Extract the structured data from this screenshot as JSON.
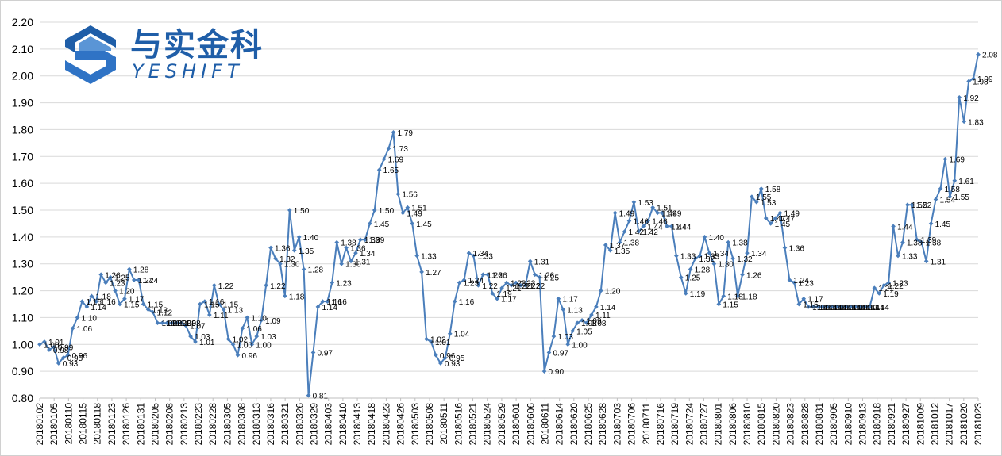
{
  "brand": {
    "name_cn": "与实金科",
    "name_en": "YESHIFT",
    "color": "#1f5ea8"
  },
  "chart_data": {
    "type": "line",
    "title": "",
    "xlabel": "",
    "ylabel": "",
    "ylim": [
      0.8,
      2.2
    ],
    "yticks": [
      "0.80",
      "0.90",
      "1.00",
      "1.10",
      "1.20",
      "1.30",
      "1.40",
      "1.50",
      "1.60",
      "1.70",
      "1.80",
      "1.90",
      "2.00",
      "2.10",
      "2.20"
    ],
    "x_tick_labels": [
      "20180102",
      "20180105",
      "20180110",
      "20180115",
      "20180118",
      "20180123",
      "20180126",
      "20180131",
      "20180205",
      "20180208",
      "20180213",
      "20180223",
      "20180228",
      "20180305",
      "20180308",
      "20180313",
      "20180316",
      "20180321",
      "20180326",
      "20180329",
      "20180403",
      "20180410",
      "20180413",
      "20180418",
      "20180423",
      "20180426",
      "20180503",
      "20180508",
      "20180511",
      "20180516",
      "20180521",
      "20180524",
      "20180529",
      "20180601",
      "20180606",
      "20180611",
      "20180614",
      "20180620",
      "20180625",
      "20180628",
      "20180703",
      "20180706",
      "20180711",
      "20180716",
      "20180719",
      "20180724",
      "20180727",
      "20180801",
      "20180806",
      "20180810",
      "20180815",
      "20180820",
      "20180823",
      "20180828",
      "20180831",
      "20180905",
      "20180910",
      "20180913",
      "20180918",
      "20180921",
      "20180927",
      "20181009",
      "20181012",
      "20181017",
      "20181020",
      "20181023"
    ],
    "grid": "horizontal",
    "line_color": "#4a7ebb",
    "label_color": "#000000",
    "series": [
      {
        "values": [
          1.0,
          1.01,
          0.98,
          0.99,
          0.93,
          0.95,
          0.96,
          1.06,
          1.1,
          1.16,
          1.14,
          1.18,
          1.16,
          1.26,
          1.23,
          1.25,
          1.2,
          1.15,
          1.17,
          1.28,
          1.24,
          1.24,
          1.15,
          1.13,
          1.12,
          1.08,
          1.08,
          1.08,
          1.08,
          1.08,
          1.08,
          1.07,
          1.03,
          1.01,
          1.15,
          1.16,
          1.11,
          1.22,
          1.15,
          1.13,
          1.02,
          1.0,
          0.96,
          1.06,
          1.1,
          1.0,
          1.03,
          1.09,
          1.22,
          1.36,
          1.32,
          1.3,
          1.18,
          1.5,
          1.35,
          1.4,
          1.28,
          0.81,
          0.97,
          1.14,
          1.16,
          1.16,
          1.23,
          1.38,
          1.3,
          1.36,
          1.31,
          1.34,
          1.39,
          1.39,
          1.45,
          1.5,
          1.65,
          1.69,
          1.73,
          1.79,
          1.56,
          1.49,
          1.51,
          1.45,
          1.33,
          1.27,
          1.02,
          1.01,
          0.96,
          0.93,
          0.95,
          1.04,
          1.16,
          1.23,
          1.24,
          1.34,
          1.33,
          1.22,
          1.26,
          1.26,
          1.19,
          1.17,
          1.21,
          1.23,
          1.22,
          1.23,
          1.22,
          1.22,
          1.31,
          1.26,
          1.25,
          0.9,
          0.97,
          1.03,
          1.17,
          1.13,
          1.0,
          1.05,
          1.08,
          1.09,
          1.08,
          1.11,
          1.14,
          1.2,
          1.37,
          1.35,
          1.49,
          1.38,
          1.42,
          1.46,
          1.53,
          1.42,
          1.44,
          1.46,
          1.51,
          1.49,
          1.49,
          1.44,
          1.44,
          1.33,
          1.25,
          1.19,
          1.28,
          1.32,
          1.33,
          1.4,
          1.34,
          1.3,
          1.15,
          1.18,
          1.38,
          1.32,
          1.18,
          1.26,
          1.34,
          1.55,
          1.53,
          1.58,
          1.47,
          1.45,
          1.47,
          1.49,
          1.36,
          1.24,
          1.23,
          1.15,
          1.17,
          1.14,
          1.14,
          1.14,
          1.14,
          1.14,
          1.14,
          1.14,
          1.14,
          1.14,
          1.14,
          1.14,
          1.14,
          1.14,
          1.14,
          1.21,
          1.19,
          1.22,
          1.23,
          1.44,
          1.33,
          1.38,
          1.52,
          1.52,
          1.39,
          1.38,
          1.31,
          1.45,
          1.54,
          1.58,
          1.69,
          1.55,
          1.61,
          1.92,
          1.83,
          1.98,
          1.99,
          2.08
        ]
      }
    ]
  }
}
